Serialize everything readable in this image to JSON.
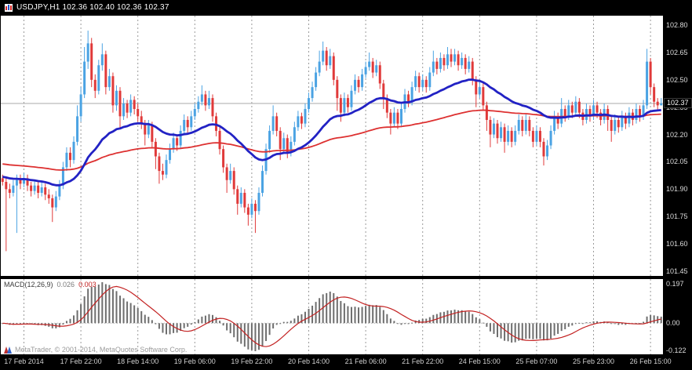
{
  "titlebar": {
    "text": "USDJPY,H1 102.36 102.40 102.36 102.37"
  },
  "watermark": {
    "text": "MetaTrader, © 2001-2014, MetaQuotes Software Corp."
  },
  "chart_data": {
    "type": "candlestick",
    "symbol": "USDJPY",
    "timeframe": "H1",
    "current_bar": {
      "open": 102.36,
      "high": 102.4,
      "low": 102.36,
      "close": 102.37
    },
    "bid": 102.37,
    "price_axis": {
      "ticks": [
        "102.80",
        "102.65",
        "102.50",
        "102.35",
        "102.20",
        "102.05",
        "101.90",
        "101.75",
        "101.60",
        "101.45"
      ],
      "bid_label": "102.37"
    },
    "time_axis": {
      "labels": [
        "17 Feb 2014",
        "17 Feb 22:00",
        "18 Feb 14:00",
        "19 Feb 06:00",
        "19 Feb 22:00",
        "20 Feb 14:00",
        "21 Feb 06:00",
        "21 Feb 22:00",
        "24 Feb 15:00",
        "25 Feb 07:00",
        "25 Feb 23:00",
        "26 Feb 15:00"
      ],
      "bar_indices": [
        6,
        22,
        38,
        54,
        70,
        86,
        102,
        118,
        134,
        150,
        166,
        182
      ]
    },
    "candles": [
      [
        101.96,
        101.98,
        101.92,
        101.94
      ],
      [
        101.94,
        101.96,
        101.56,
        101.9
      ],
      [
        101.9,
        101.93,
        101.85,
        101.88
      ],
      [
        101.88,
        101.95,
        101.86,
        101.92
      ],
      [
        101.92,
        101.98,
        101.66,
        101.95
      ],
      [
        101.95,
        101.98,
        101.9,
        101.93
      ],
      [
        101.93,
        101.99,
        101.91,
        101.96
      ],
      [
        101.96,
        101.98,
        101.89,
        101.92
      ],
      [
        101.92,
        101.94,
        101.86,
        101.89
      ],
      [
        101.89,
        101.95,
        101.87,
        101.92
      ],
      [
        101.92,
        101.94,
        101.85,
        101.88
      ],
      [
        101.88,
        101.94,
        101.86,
        101.91
      ],
      [
        101.91,
        101.93,
        101.84,
        101.87
      ],
      [
        101.87,
        101.9,
        101.82,
        101.85
      ],
      [
        101.85,
        101.87,
        101.72,
        101.8
      ],
      [
        101.8,
        101.89,
        101.78,
        101.86
      ],
      [
        101.86,
        101.95,
        101.84,
        101.92
      ],
      [
        101.92,
        102.05,
        101.9,
        102.02
      ],
      [
        102.02,
        102.13,
        102.0,
        102.1
      ],
      [
        102.1,
        102.13,
        102.02,
        102.06
      ],
      [
        102.06,
        102.19,
        102.04,
        102.16
      ],
      [
        102.16,
        102.36,
        102.14,
        102.3
      ],
      [
        102.3,
        102.46,
        102.27,
        102.42
      ],
      [
        102.42,
        102.68,
        102.4,
        102.6
      ],
      [
        102.6,
        102.77,
        102.56,
        102.7
      ],
      [
        102.7,
        102.73,
        102.46,
        102.5
      ],
      [
        102.5,
        102.53,
        102.4,
        102.44
      ],
      [
        102.44,
        102.61,
        102.42,
        102.58
      ],
      [
        102.58,
        102.7,
        102.55,
        102.64
      ],
      [
        102.64,
        102.66,
        102.42,
        102.46
      ],
      [
        102.46,
        102.56,
        102.44,
        102.52
      ],
      [
        102.52,
        102.54,
        102.32,
        102.36
      ],
      [
        102.36,
        102.47,
        102.33,
        102.44
      ],
      [
        102.44,
        102.46,
        102.23,
        102.3
      ],
      [
        102.3,
        102.4,
        102.28,
        102.37
      ],
      [
        102.37,
        102.39,
        102.29,
        102.32
      ],
      [
        102.32,
        102.42,
        102.3,
        102.39
      ],
      [
        102.39,
        102.41,
        102.31,
        102.34
      ],
      [
        102.34,
        102.37,
        102.27,
        102.3
      ],
      [
        102.3,
        102.33,
        102.23,
        102.26
      ],
      [
        102.26,
        102.28,
        102.14,
        102.2
      ],
      [
        102.2,
        102.28,
        102.18,
        102.25
      ],
      [
        102.25,
        102.27,
        102.13,
        102.16
      ],
      [
        102.16,
        102.18,
        102.01,
        102.08
      ],
      [
        102.08,
        102.1,
        101.93,
        102.0
      ],
      [
        102.0,
        102.04,
        101.95,
        101.98
      ],
      [
        101.98,
        102.09,
        101.96,
        102.06
      ],
      [
        102.06,
        102.15,
        102.04,
        102.12
      ],
      [
        102.12,
        102.21,
        102.1,
        102.18
      ],
      [
        102.18,
        102.2,
        102.11,
        102.14
      ],
      [
        102.14,
        102.25,
        102.12,
        102.22
      ],
      [
        102.22,
        102.31,
        102.2,
        102.28
      ],
      [
        102.28,
        102.3,
        102.21,
        102.24
      ],
      [
        102.24,
        102.33,
        102.22,
        102.3
      ],
      [
        102.3,
        102.37,
        102.28,
        102.34
      ],
      [
        102.34,
        102.41,
        102.32,
        102.38
      ],
      [
        102.38,
        102.47,
        102.36,
        102.42
      ],
      [
        102.42,
        102.44,
        102.33,
        102.36
      ],
      [
        102.36,
        102.44,
        102.34,
        102.4
      ],
      [
        102.4,
        102.42,
        102.27,
        102.3
      ],
      [
        102.3,
        102.32,
        102.19,
        102.22
      ],
      [
        102.22,
        102.24,
        102.09,
        102.12
      ],
      [
        102.12,
        102.14,
        101.99,
        102.02
      ],
      [
        102.02,
        102.04,
        101.88,
        101.95
      ],
      [
        101.95,
        102.04,
        101.93,
        102.0
      ],
      [
        102.0,
        102.02,
        101.87,
        101.9
      ],
      [
        101.9,
        101.92,
        101.76,
        101.82
      ],
      [
        101.82,
        101.91,
        101.8,
        101.88
      ],
      [
        101.88,
        101.9,
        101.77,
        101.8
      ],
      [
        101.8,
        101.82,
        101.7,
        101.76
      ],
      [
        101.76,
        101.85,
        101.74,
        101.82
      ],
      [
        101.82,
        101.84,
        101.66,
        101.78
      ],
      [
        101.78,
        101.91,
        101.76,
        101.88
      ],
      [
        101.88,
        102.03,
        101.86,
        102.0
      ],
      [
        102.0,
        102.15,
        101.98,
        102.12
      ],
      [
        102.12,
        102.25,
        102.1,
        102.22
      ],
      [
        102.22,
        102.36,
        102.2,
        102.3
      ],
      [
        102.3,
        102.32,
        102.19,
        102.22
      ],
      [
        102.22,
        102.24,
        102.06,
        102.12
      ],
      [
        102.12,
        102.21,
        102.1,
        102.18
      ],
      [
        102.18,
        102.2,
        102.07,
        102.1
      ],
      [
        102.1,
        102.19,
        102.08,
        102.16
      ],
      [
        102.16,
        102.27,
        102.14,
        102.24
      ],
      [
        102.24,
        102.33,
        102.22,
        102.3
      ],
      [
        102.3,
        102.32,
        102.23,
        102.26
      ],
      [
        102.26,
        102.37,
        102.24,
        102.34
      ],
      [
        102.34,
        102.43,
        102.32,
        102.4
      ],
      [
        102.4,
        102.49,
        102.38,
        102.46
      ],
      [
        102.46,
        102.57,
        102.44,
        102.54
      ],
      [
        102.54,
        102.66,
        102.52,
        102.6
      ],
      [
        102.6,
        102.71,
        102.58,
        102.66
      ],
      [
        102.66,
        102.68,
        102.55,
        102.58
      ],
      [
        102.58,
        102.67,
        102.56,
        102.63
      ],
      [
        102.63,
        102.65,
        102.47,
        102.5
      ],
      [
        102.5,
        102.52,
        102.33,
        102.4
      ],
      [
        102.4,
        102.42,
        102.27,
        102.32
      ],
      [
        102.32,
        102.43,
        102.3,
        102.4
      ],
      [
        102.4,
        102.42,
        102.32,
        102.35
      ],
      [
        102.35,
        102.47,
        102.33,
        102.44
      ],
      [
        102.44,
        102.53,
        102.42,
        102.5
      ],
      [
        102.5,
        102.52,
        102.43,
        102.46
      ],
      [
        102.46,
        102.56,
        102.44,
        102.53
      ],
      [
        102.53,
        102.6,
        102.51,
        102.57
      ],
      [
        102.57,
        102.65,
        102.55,
        102.6
      ],
      [
        102.6,
        102.62,
        102.51,
        102.54
      ],
      [
        102.54,
        102.61,
        102.52,
        102.58
      ],
      [
        102.58,
        102.6,
        102.45,
        102.48
      ],
      [
        102.48,
        102.5,
        102.34,
        102.4
      ],
      [
        102.4,
        102.42,
        102.29,
        102.32
      ],
      [
        102.32,
        102.34,
        102.2,
        102.26
      ],
      [
        102.26,
        102.35,
        102.24,
        102.32
      ],
      [
        102.32,
        102.34,
        102.23,
        102.26
      ],
      [
        102.26,
        102.37,
        102.24,
        102.34
      ],
      [
        102.34,
        102.45,
        102.32,
        102.42
      ],
      [
        102.42,
        102.44,
        102.35,
        102.38
      ],
      [
        102.38,
        102.49,
        102.36,
        102.46
      ],
      [
        102.46,
        102.55,
        102.44,
        102.52
      ],
      [
        102.52,
        102.54,
        102.43,
        102.46
      ],
      [
        102.46,
        102.53,
        102.44,
        102.5
      ],
      [
        102.5,
        102.52,
        102.43,
        102.46
      ],
      [
        102.46,
        102.57,
        102.44,
        102.54
      ],
      [
        102.54,
        102.66,
        102.52,
        102.6
      ],
      [
        102.6,
        102.62,
        102.53,
        102.56
      ],
      [
        102.56,
        102.65,
        102.54,
        102.62
      ],
      [
        102.62,
        102.64,
        102.55,
        102.58
      ],
      [
        102.58,
        102.68,
        102.56,
        102.64
      ],
      [
        102.64,
        102.67,
        102.57,
        102.6
      ],
      [
        102.6,
        102.67,
        102.58,
        102.64
      ],
      [
        102.64,
        102.66,
        102.55,
        102.58
      ],
      [
        102.58,
        102.65,
        102.56,
        102.62
      ],
      [
        102.62,
        102.64,
        102.53,
        102.56
      ],
      [
        102.56,
        102.63,
        102.54,
        102.6
      ],
      [
        102.6,
        102.62,
        102.47,
        102.5
      ],
      [
        102.5,
        102.52,
        102.35,
        102.42
      ],
      [
        102.42,
        102.49,
        102.4,
        102.46
      ],
      [
        102.46,
        102.48,
        102.33,
        102.36
      ],
      [
        102.36,
        102.38,
        102.22,
        102.28
      ],
      [
        102.28,
        102.3,
        102.13,
        102.2
      ],
      [
        102.2,
        102.29,
        102.18,
        102.26
      ],
      [
        102.26,
        102.28,
        102.15,
        102.18
      ],
      [
        102.18,
        102.27,
        102.16,
        102.24
      ],
      [
        102.24,
        102.26,
        102.1,
        102.16
      ],
      [
        102.16,
        102.25,
        102.14,
        102.22
      ],
      [
        102.22,
        102.24,
        102.13,
        102.16
      ],
      [
        102.16,
        102.25,
        102.14,
        102.22
      ],
      [
        102.22,
        102.31,
        102.2,
        102.28
      ],
      [
        102.28,
        102.3,
        102.19,
        102.22
      ],
      [
        102.22,
        102.31,
        102.2,
        102.28
      ],
      [
        102.28,
        102.3,
        102.19,
        102.22
      ],
      [
        102.22,
        102.24,
        102.13,
        102.16
      ],
      [
        102.16,
        102.25,
        102.14,
        102.22
      ],
      [
        102.22,
        102.24,
        102.13,
        102.16
      ],
      [
        102.16,
        102.18,
        102.03,
        102.08
      ],
      [
        102.08,
        102.17,
        102.06,
        102.14
      ],
      [
        102.14,
        102.25,
        102.12,
        102.22
      ],
      [
        102.22,
        102.33,
        102.2,
        102.3
      ],
      [
        102.3,
        102.32,
        102.23,
        102.26
      ],
      [
        102.26,
        102.4,
        102.24,
        102.34
      ],
      [
        102.34,
        102.36,
        102.27,
        102.3
      ],
      [
        102.3,
        102.39,
        102.28,
        102.36
      ],
      [
        102.36,
        102.38,
        102.29,
        102.32
      ],
      [
        102.32,
        102.41,
        102.3,
        102.38
      ],
      [
        102.38,
        102.4,
        102.29,
        102.32
      ],
      [
        102.32,
        102.34,
        102.25,
        102.28
      ],
      [
        102.28,
        102.37,
        102.26,
        102.34
      ],
      [
        102.34,
        102.36,
        102.27,
        102.3
      ],
      [
        102.3,
        102.39,
        102.28,
        102.36
      ],
      [
        102.36,
        102.38,
        102.29,
        102.32
      ],
      [
        102.32,
        102.34,
        102.25,
        102.28
      ],
      [
        102.28,
        102.37,
        102.26,
        102.34
      ],
      [
        102.34,
        102.36,
        102.22,
        102.28
      ],
      [
        102.28,
        102.3,
        102.16,
        102.22
      ],
      [
        102.22,
        102.31,
        102.2,
        102.28
      ],
      [
        102.28,
        102.3,
        102.21,
        102.24
      ],
      [
        102.24,
        102.33,
        102.22,
        102.3
      ],
      [
        102.3,
        102.32,
        102.23,
        102.26
      ],
      [
        102.26,
        102.35,
        102.24,
        102.32
      ],
      [
        102.32,
        102.34,
        102.25,
        102.28
      ],
      [
        102.28,
        102.37,
        102.26,
        102.34
      ],
      [
        102.34,
        102.36,
        102.27,
        102.3
      ],
      [
        102.3,
        102.39,
        102.28,
        102.36
      ],
      [
        102.36,
        102.67,
        102.34,
        102.6
      ],
      [
        102.6,
        102.62,
        102.42,
        102.46
      ],
      [
        102.46,
        102.48,
        102.35,
        102.38
      ],
      [
        102.38,
        102.4,
        102.33,
        102.36
      ],
      [
        102.36,
        102.4,
        102.36,
        102.37
      ]
    ],
    "overlays": [
      {
        "name": "ma-red-line",
        "period": 120,
        "seed": 102.04,
        "color": "#dd3030",
        "width": 1.8
      },
      {
        "name": "ma-blue-line",
        "period": 34,
        "seed": 101.97,
        "color": "#2222c4",
        "width": 2.8
      }
    ],
    "indicator": {
      "label": "MACD(12,26,9)",
      "value_main": "0.026",
      "value_signal": "0.003",
      "scale": {
        "max": "0.197",
        "zero": "0.00",
        "min": "-0.122"
      }
    },
    "colors": {
      "bull": "#4ba3e3",
      "bear": "#e03a3a",
      "separator": "#9a9a9a",
      "bid_line": "#a8a8a8",
      "histogram": "#6e6e6e",
      "signal": "#c32222"
    }
  }
}
